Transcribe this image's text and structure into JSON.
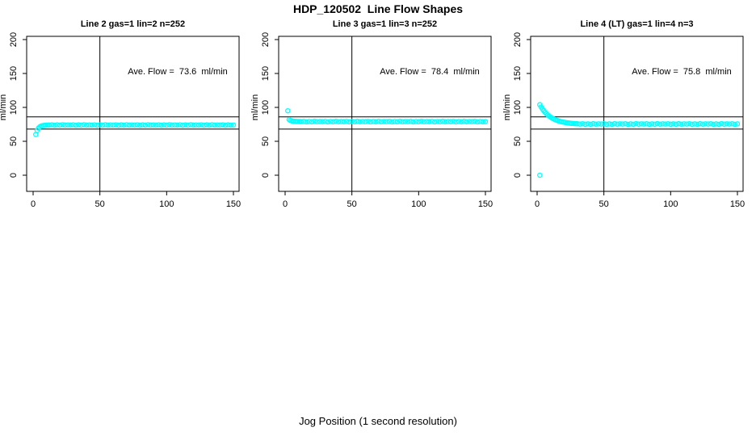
{
  "figure": {
    "title": "HDP_120502  Line Flow Shapes",
    "xlabel": "Jog Position (1 second resolution)",
    "background": "#ffffff",
    "point_color": "#00ffff",
    "axis_color": "#000000"
  },
  "chart_data": [
    {
      "type": "scatter",
      "title": "Line 2 gas=1 lin=2 n=252",
      "gas": 1,
      "lin": 2,
      "n": 252,
      "ylabel": "ml/min",
      "annotation": "Ave. Flow =  73.6  ml/min",
      "ave_flow_ml_min": 73.6,
      "xticks": [
        0,
        50,
        100,
        150
      ],
      "yticks": [
        0,
        50,
        100,
        150,
        200
      ],
      "xlim": [
        0,
        150
      ],
      "ylim": [
        0,
        200
      ],
      "grid": false,
      "legend": "none",
      "vline_x": 50,
      "hlines_y": [
        86,
        68
      ],
      "point_style": "open-circle",
      "points": [
        [
          2,
          60
        ],
        [
          3,
          66
        ],
        [
          4,
          69.5
        ],
        [
          5,
          71.3
        ],
        [
          6,
          72.4
        ],
        [
          7,
          73
        ],
        [
          8,
          73.4
        ],
        [
          9,
          73.6
        ],
        [
          10,
          73.8
        ],
        [
          11,
          73.9
        ],
        [
          12,
          74
        ],
        [
          14,
          74.3
        ],
        [
          16,
          73.7
        ],
        [
          18,
          74.2
        ],
        [
          20,
          73.8
        ],
        [
          22,
          74.4
        ],
        [
          24,
          73.9
        ],
        [
          26,
          74.1
        ],
        [
          28,
          74
        ],
        [
          30,
          74.3
        ],
        [
          32,
          73.7
        ],
        [
          34,
          74.2
        ],
        [
          36,
          73.8
        ],
        [
          38,
          74.4
        ],
        [
          40,
          73.9
        ],
        [
          42,
          74.1
        ],
        [
          44,
          74
        ],
        [
          46,
          74.3
        ],
        [
          48,
          73.7
        ],
        [
          50,
          74.2
        ],
        [
          52,
          73.8
        ],
        [
          54,
          74.4
        ],
        [
          56,
          73.9
        ],
        [
          58,
          74.1
        ],
        [
          60,
          74
        ],
        [
          62,
          74.3
        ],
        [
          64,
          73.7
        ],
        [
          66,
          74.2
        ],
        [
          68,
          73.8
        ],
        [
          70,
          74.4
        ],
        [
          72,
          73.9
        ],
        [
          74,
          74.1
        ],
        [
          76,
          74
        ],
        [
          78,
          74.3
        ],
        [
          80,
          73.7
        ],
        [
          82,
          74.2
        ],
        [
          84,
          73.8
        ],
        [
          86,
          74.4
        ],
        [
          88,
          73.9
        ],
        [
          90,
          74.1
        ],
        [
          92,
          74
        ],
        [
          94,
          74.3
        ],
        [
          96,
          73.7
        ],
        [
          98,
          74.2
        ],
        [
          100,
          73.8
        ],
        [
          102,
          74.4
        ],
        [
          104,
          73.9
        ],
        [
          106,
          74.1
        ],
        [
          108,
          74
        ],
        [
          110,
          74.3
        ],
        [
          112,
          73.7
        ],
        [
          114,
          74.2
        ],
        [
          116,
          73.8
        ],
        [
          118,
          74.4
        ],
        [
          120,
          73.9
        ],
        [
          122,
          74.1
        ],
        [
          124,
          74
        ],
        [
          126,
          74.3
        ],
        [
          128,
          73.7
        ],
        [
          130,
          74.2
        ],
        [
          132,
          73.8
        ],
        [
          134,
          74.4
        ],
        [
          136,
          73.9
        ],
        [
          138,
          74.1
        ],
        [
          140,
          74
        ],
        [
          142,
          74.3
        ],
        [
          144,
          73.7
        ],
        [
          146,
          74.2
        ],
        [
          148,
          73.8
        ],
        [
          150,
          74
        ]
      ]
    },
    {
      "type": "scatter",
      "title": "Line 3 gas=1 lin=3 n=252",
      "gas": 1,
      "lin": 3,
      "n": 252,
      "ylabel": "ml/min",
      "annotation": "Ave. Flow =  78.4  ml/min",
      "ave_flow_ml_min": 78.4,
      "xticks": [
        0,
        50,
        100,
        150
      ],
      "yticks": [
        0,
        50,
        100,
        150,
        200
      ],
      "xlim": [
        0,
        150
      ],
      "ylim": [
        0,
        200
      ],
      "grid": false,
      "legend": "none",
      "vline_x": 50,
      "hlines_y": [
        86,
        68
      ],
      "point_style": "open-circle",
      "points": [
        [
          2,
          95
        ],
        [
          3,
          82
        ],
        [
          4,
          80.6
        ],
        [
          5,
          80
        ],
        [
          6,
          79.6
        ],
        [
          7,
          79.4
        ],
        [
          8,
          79.3
        ],
        [
          9,
          79.2
        ],
        [
          10,
          79.2
        ],
        [
          11,
          79.1
        ],
        [
          12,
          79
        ],
        [
          14,
          79.3
        ],
        [
          16,
          78.7
        ],
        [
          18,
          79.2
        ],
        [
          20,
          78.8
        ],
        [
          22,
          79.4
        ],
        [
          24,
          78.9
        ],
        [
          26,
          79.1
        ],
        [
          28,
          79
        ],
        [
          30,
          79.3
        ],
        [
          32,
          78.7
        ],
        [
          34,
          79.2
        ],
        [
          36,
          78.8
        ],
        [
          38,
          79.4
        ],
        [
          40,
          78.9
        ],
        [
          42,
          79.1
        ],
        [
          44,
          79
        ],
        [
          46,
          79.3
        ],
        [
          48,
          78.7
        ],
        [
          50,
          79.2
        ],
        [
          52,
          78.8
        ],
        [
          54,
          79.4
        ],
        [
          56,
          78.9
        ],
        [
          58,
          79.1
        ],
        [
          60,
          79
        ],
        [
          62,
          79.3
        ],
        [
          64,
          78.7
        ],
        [
          66,
          79.2
        ],
        [
          68,
          78.8
        ],
        [
          70,
          79.4
        ],
        [
          72,
          78.9
        ],
        [
          74,
          79.1
        ],
        [
          76,
          79
        ],
        [
          78,
          79.3
        ],
        [
          80,
          78.7
        ],
        [
          82,
          79.2
        ],
        [
          84,
          78.8
        ],
        [
          86,
          79.4
        ],
        [
          88,
          78.9
        ],
        [
          90,
          79.1
        ],
        [
          92,
          79
        ],
        [
          94,
          79.3
        ],
        [
          96,
          78.7
        ],
        [
          98,
          79.2
        ],
        [
          100,
          78.8
        ],
        [
          102,
          79.4
        ],
        [
          104,
          78.9
        ],
        [
          106,
          79.1
        ],
        [
          108,
          79
        ],
        [
          110,
          79.3
        ],
        [
          112,
          78.7
        ],
        [
          114,
          79.2
        ],
        [
          116,
          78.8
        ],
        [
          118,
          79.4
        ],
        [
          120,
          78.9
        ],
        [
          122,
          79.1
        ],
        [
          124,
          79
        ],
        [
          126,
          79.3
        ],
        [
          128,
          78.7
        ],
        [
          130,
          79.2
        ],
        [
          132,
          78.8
        ],
        [
          134,
          79.4
        ],
        [
          136,
          78.9
        ],
        [
          138,
          79.1
        ],
        [
          140,
          79
        ],
        [
          142,
          79.3
        ],
        [
          144,
          78.7
        ],
        [
          146,
          79.2
        ],
        [
          148,
          78.8
        ],
        [
          150,
          79
        ]
      ]
    },
    {
      "type": "scatter",
      "title": "Line 4 (LT) gas=1 lin=4 n=3",
      "gas": 1,
      "lin": 4,
      "n": 3,
      "ylabel": "ml/min",
      "annotation": "Ave. Flow =  75.8  ml/min",
      "ave_flow_ml_min": 75.8,
      "xticks": [
        0,
        50,
        100,
        150
      ],
      "yticks": [
        0,
        50,
        100,
        150,
        200
      ],
      "xlim": [
        0,
        150
      ],
      "ylim": [
        0,
        200
      ],
      "grid": false,
      "legend": "none",
      "vline_x": 50,
      "hlines_y": [
        86,
        68
      ],
      "point_style": "open-circle",
      "points": [
        [
          2,
          0
        ],
        [
          2,
          104
        ],
        [
          3,
          100.6
        ],
        [
          4,
          97.6
        ],
        [
          5,
          94.9
        ],
        [
          6,
          92.6
        ],
        [
          7,
          90.5
        ],
        [
          8,
          88.7
        ],
        [
          9,
          87.1
        ],
        [
          10,
          85.7
        ],
        [
          11,
          84.4
        ],
        [
          12,
          83.3
        ],
        [
          13,
          82.3
        ],
        [
          14,
          81.5
        ],
        [
          15,
          80.7
        ],
        [
          16,
          80
        ],
        [
          17,
          79.4
        ],
        [
          18,
          78.9
        ],
        [
          19,
          78.5
        ],
        [
          20,
          78.1
        ],
        [
          21,
          77.7
        ],
        [
          22,
          77.4
        ],
        [
          23,
          77.1
        ],
        [
          24,
          76.9
        ],
        [
          25,
          76.6
        ],
        [
          26,
          76.4
        ],
        [
          27,
          76.3
        ],
        [
          28,
          76.1
        ],
        [
          29,
          76
        ],
        [
          30,
          75.9
        ],
        [
          32,
          75.5
        ],
        [
          34,
          75.9
        ],
        [
          36,
          75.1
        ],
        [
          38,
          75.7
        ],
        [
          40,
          75.2
        ],
        [
          42,
          76
        ],
        [
          44,
          75.3
        ],
        [
          46,
          75.8
        ],
        [
          48,
          75.5
        ],
        [
          50,
          75.9
        ],
        [
          52,
          75.1
        ],
        [
          54,
          75.7
        ],
        [
          56,
          75.2
        ],
        [
          58,
          76
        ],
        [
          60,
          75.3
        ],
        [
          62,
          75.8
        ],
        [
          64,
          75.5
        ],
        [
          66,
          75.9
        ],
        [
          68,
          75.1
        ],
        [
          70,
          75.7
        ],
        [
          72,
          75.2
        ],
        [
          74,
          76
        ],
        [
          76,
          75.3
        ],
        [
          78,
          75.8
        ],
        [
          80,
          75.5
        ],
        [
          82,
          75.9
        ],
        [
          84,
          75.1
        ],
        [
          86,
          75.7
        ],
        [
          88,
          75.2
        ],
        [
          90,
          76
        ],
        [
          92,
          75.3
        ],
        [
          94,
          75.8
        ],
        [
          96,
          75.5
        ],
        [
          98,
          75.9
        ],
        [
          100,
          75.1
        ],
        [
          102,
          75.7
        ],
        [
          104,
          75.2
        ],
        [
          106,
          76
        ],
        [
          108,
          75.3
        ],
        [
          110,
          75.8
        ],
        [
          112,
          75.5
        ],
        [
          114,
          75.9
        ],
        [
          116,
          75.1
        ],
        [
          118,
          75.7
        ],
        [
          120,
          75.2
        ],
        [
          122,
          76
        ],
        [
          124,
          75.3
        ],
        [
          126,
          75.8
        ],
        [
          128,
          75.5
        ],
        [
          130,
          75.9
        ],
        [
          132,
          75.1
        ],
        [
          134,
          75.7
        ],
        [
          136,
          75.2
        ],
        [
          138,
          76
        ],
        [
          140,
          75.3
        ],
        [
          142,
          75.8
        ],
        [
          144,
          75.5
        ],
        [
          146,
          75.9
        ],
        [
          148,
          75.1
        ],
        [
          150,
          75.7
        ]
      ]
    }
  ]
}
